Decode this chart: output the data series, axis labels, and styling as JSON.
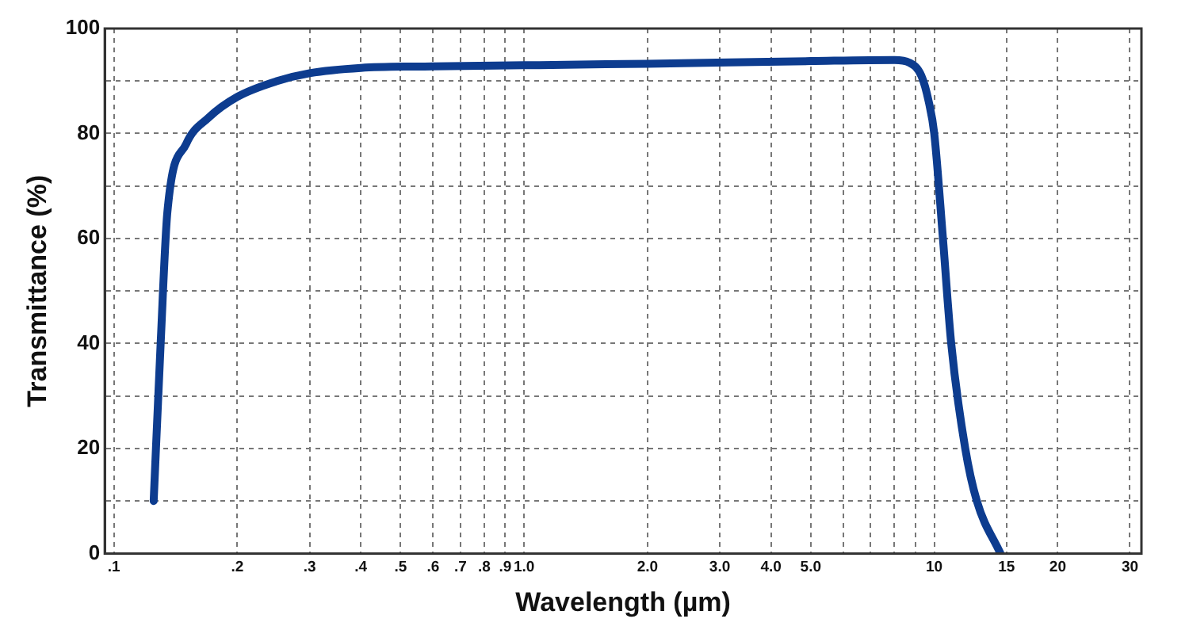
{
  "chart_data": {
    "type": "line",
    "xlabel": "Wavelength (µm)",
    "ylabel": "Transmittance (%)",
    "log": "x",
    "grid": true,
    "marker": "none",
    "line_style": "solid",
    "xlim": [
      0.095,
      32
    ],
    "ylim": [
      0,
      100
    ],
    "xticks": [
      {
        "value": 0.1,
        "label": ".1"
      },
      {
        "value": 0.2,
        "label": ".2"
      },
      {
        "value": 0.3,
        "label": ".3"
      },
      {
        "value": 0.4,
        "label": ".4"
      },
      {
        "value": 0.5,
        "label": ".5"
      },
      {
        "value": 0.6,
        "label": ".6"
      },
      {
        "value": 0.7,
        "label": ".7"
      },
      {
        "value": 0.8,
        "label": ".8"
      },
      {
        "value": 0.9,
        "label": ".9"
      },
      {
        "value": 1,
        "label": "1.0"
      },
      {
        "value": 2,
        "label": "2.0"
      },
      {
        "value": 3,
        "label": "3.0"
      },
      {
        "value": 4,
        "label": "4.0"
      },
      {
        "value": 5,
        "label": "5.0"
      },
      {
        "value": 6,
        "label": null
      },
      {
        "value": 7,
        "label": null
      },
      {
        "value": 8,
        "label": null
      },
      {
        "value": 9,
        "label": null
      },
      10,
      15,
      20,
      30
    ],
    "yticks": [
      0,
      {
        "value": 10,
        "label": null
      },
      20,
      {
        "value": 30,
        "label": null
      },
      40,
      {
        "value": 50,
        "label": null
      },
      60,
      {
        "value": 70,
        "label": null
      },
      80,
      {
        "value": 90,
        "label": null
      },
      100
    ],
    "series": [
      {
        "color": "#0d3c8f",
        "x": [
          0.125,
          0.13,
          0.135,
          0.15,
          0.17,
          0.2,
          0.25,
          0.3,
          0.4,
          0.6,
          1,
          2,
          5,
          8,
          8.7,
          9.3,
          9.7,
          10,
          10.5,
          11,
          11.9,
          12.7,
          14.5
        ],
        "values": [
          10,
          40,
          65,
          78,
          83,
          87,
          90,
          91.5,
          92.5,
          92.8,
          93,
          93.3,
          93.8,
          94,
          93.5,
          91,
          86,
          80,
          60,
          40,
          20,
          10,
          0
        ]
      }
    ]
  }
}
